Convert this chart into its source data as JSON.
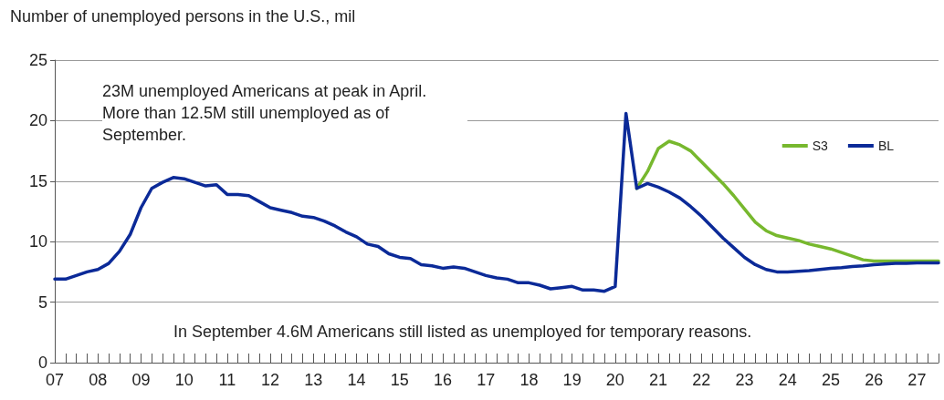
{
  "chart_data": {
    "type": "line",
    "title": "Number of unemployed persons in the U.S., mil",
    "annotations": [
      "23M unemployed Americans at peak in April. More than 12.5M still unemployed as of September.",
      "In September 4.6M Americans still listed as unemployed for temporary reasons."
    ],
    "xlim": [
      2007,
      2027.5
    ],
    "xticks": [
      {
        "value": 2007,
        "label": "07"
      },
      {
        "value": 2007.25,
        "label": null
      },
      {
        "value": 2007.5,
        "label": null
      },
      {
        "value": 2007.75,
        "label": null
      },
      {
        "value": 2008,
        "label": "08"
      },
      {
        "value": 2008.25,
        "label": null
      },
      {
        "value": 2008.5,
        "label": null
      },
      {
        "value": 2008.75,
        "label": null
      },
      {
        "value": 2009,
        "label": "09"
      },
      {
        "value": 2009.25,
        "label": null
      },
      {
        "value": 2009.5,
        "label": null
      },
      {
        "value": 2009.75,
        "label": null
      },
      {
        "value": 2010,
        "label": "10"
      },
      {
        "value": 2010.25,
        "label": null
      },
      {
        "value": 2010.5,
        "label": null
      },
      {
        "value": 2010.75,
        "label": null
      },
      {
        "value": 2011,
        "label": "11"
      },
      {
        "value": 2011.25,
        "label": null
      },
      {
        "value": 2011.5,
        "label": null
      },
      {
        "value": 2011.75,
        "label": null
      },
      {
        "value": 2012,
        "label": "12"
      },
      {
        "value": 2012.25,
        "label": null
      },
      {
        "value": 2012.5,
        "label": null
      },
      {
        "value": 2012.75,
        "label": null
      },
      {
        "value": 2013,
        "label": "13"
      },
      {
        "value": 2013.25,
        "label": null
      },
      {
        "value": 2013.5,
        "label": null
      },
      {
        "value": 2013.75,
        "label": null
      },
      {
        "value": 2014,
        "label": "14"
      },
      {
        "value": 2014.25,
        "label": null
      },
      {
        "value": 2014.5,
        "label": null
      },
      {
        "value": 2014.75,
        "label": null
      },
      {
        "value": 2015,
        "label": "15"
      },
      {
        "value": 2015.25,
        "label": null
      },
      {
        "value": 2015.5,
        "label": null
      },
      {
        "value": 2015.75,
        "label": null
      },
      {
        "value": 2016,
        "label": "16"
      },
      {
        "value": 2016.25,
        "label": null
      },
      {
        "value": 2016.5,
        "label": null
      },
      {
        "value": 2016.75,
        "label": null
      },
      {
        "value": 2017,
        "label": "17"
      },
      {
        "value": 2017.25,
        "label": null
      },
      {
        "value": 2017.5,
        "label": null
      },
      {
        "value": 2017.75,
        "label": null
      },
      {
        "value": 2018,
        "label": "18"
      },
      {
        "value": 2018.25,
        "label": null
      },
      {
        "value": 2018.5,
        "label": null
      },
      {
        "value": 2018.75,
        "label": null
      },
      {
        "value": 2019,
        "label": "19"
      },
      {
        "value": 2019.25,
        "label": null
      },
      {
        "value": 2019.5,
        "label": null
      },
      {
        "value": 2019.75,
        "label": null
      },
      {
        "value": 2020,
        "label": "20"
      },
      {
        "value": 2020.25,
        "label": null
      },
      {
        "value": 2020.5,
        "label": null
      },
      {
        "value": 2020.75,
        "label": null
      },
      {
        "value": 2021,
        "label": "21"
      },
      {
        "value": 2021.25,
        "label": null
      },
      {
        "value": 2021.5,
        "label": null
      },
      {
        "value": 2021.75,
        "label": null
      },
      {
        "value": 2022,
        "label": "22"
      },
      {
        "value": 2022.25,
        "label": null
      },
      {
        "value": 2022.5,
        "label": null
      },
      {
        "value": 2022.75,
        "label": null
      },
      {
        "value": 2023,
        "label": "23"
      },
      {
        "value": 2023.25,
        "label": null
      },
      {
        "value": 2023.5,
        "label": null
      },
      {
        "value": 2023.75,
        "label": null
      },
      {
        "value": 2024,
        "label": "24"
      },
      {
        "value": 2024.25,
        "label": null
      },
      {
        "value": 2024.5,
        "label": null
      },
      {
        "value": 2024.75,
        "label": null
      },
      {
        "value": 2025,
        "label": "25"
      },
      {
        "value": 2025.25,
        "label": null
      },
      {
        "value": 2025.5,
        "label": null
      },
      {
        "value": 2025.75,
        "label": null
      },
      {
        "value": 2026,
        "label": "26"
      },
      {
        "value": 2026.25,
        "label": null
      },
      {
        "value": 2026.5,
        "label": null
      },
      {
        "value": 2026.75,
        "label": null
      },
      {
        "value": 2027,
        "label": "27"
      },
      {
        "value": 2027.25,
        "label": null
      },
      {
        "value": 2027.5,
        "label": null
      }
    ],
    "ylim": [
      0,
      25
    ],
    "yticks": [
      0,
      5,
      10,
      15,
      20,
      25
    ],
    "grid": "y",
    "legend": "top right",
    "marker": "none",
    "line_style": "solid",
    "series": [
      {
        "name": "S3",
        "color": "#77b82e",
        "x": [
          2020.5,
          2020.75,
          2021,
          2021.25,
          2021.5,
          2021.75,
          2022,
          2022.25,
          2022.5,
          2022.75,
          2023,
          2023.25,
          2023.5,
          2023.75,
          2024,
          2024.25,
          2024.5,
          2024.75,
          2025,
          2025.25,
          2025.5,
          2025.75,
          2026,
          2026.25,
          2026.5,
          2026.75,
          2027,
          2027.25,
          2027.5
        ],
        "values": [
          14.4,
          15.8,
          17.7,
          18.3,
          18.0,
          17.5,
          16.6,
          15.7,
          14.8,
          13.8,
          12.7,
          11.6,
          10.9,
          10.5,
          10.3,
          10.1,
          9.8,
          9.6,
          9.4,
          9.1,
          8.8,
          8.5,
          8.4,
          8.4,
          8.4,
          8.4,
          8.4,
          8.4,
          8.4
        ]
      },
      {
        "name": "BL",
        "color": "#0b2a98",
        "x": [
          2007,
          2007.25,
          2007.5,
          2007.75,
          2008,
          2008.25,
          2008.5,
          2008.75,
          2009,
          2009.25,
          2009.5,
          2009.75,
          2010,
          2010.25,
          2010.5,
          2010.75,
          2011,
          2011.25,
          2011.5,
          2011.75,
          2012,
          2012.25,
          2012.5,
          2012.75,
          2013,
          2013.25,
          2013.5,
          2013.75,
          2014,
          2014.25,
          2014.5,
          2014.75,
          2015,
          2015.25,
          2015.5,
          2015.75,
          2016,
          2016.25,
          2016.5,
          2016.75,
          2017,
          2017.25,
          2017.5,
          2017.75,
          2018,
          2018.25,
          2018.5,
          2018.75,
          2019,
          2019.25,
          2019.5,
          2019.75,
          2020,
          2020.25,
          2020.5,
          2020.75,
          2021,
          2021.25,
          2021.5,
          2021.75,
          2022,
          2022.25,
          2022.5,
          2022.75,
          2023,
          2023.25,
          2023.5,
          2023.75,
          2024,
          2024.25,
          2024.5,
          2024.75,
          2025,
          2025.25,
          2025.5,
          2025.75,
          2026,
          2026.25,
          2026.5,
          2026.75,
          2027,
          2027.25,
          2027.5
        ],
        "values": [
          6.9,
          6.9,
          7.2,
          7.5,
          7.7,
          8.2,
          9.2,
          10.6,
          12.8,
          14.4,
          14.9,
          15.3,
          15.2,
          14.9,
          14.6,
          14.7,
          13.9,
          13.9,
          13.8,
          13.3,
          12.8,
          12.6,
          12.4,
          12.1,
          12.0,
          11.7,
          11.3,
          10.8,
          10.4,
          9.8,
          9.6,
          9.0,
          8.7,
          8.6,
          8.1,
          8.0,
          7.8,
          7.9,
          7.8,
          7.5,
          7.2,
          7.0,
          6.9,
          6.6,
          6.6,
          6.4,
          6.1,
          6.2,
          6.3,
          6.0,
          6.0,
          5.9,
          6.3,
          20.6,
          14.4,
          14.8,
          14.5,
          14.1,
          13.6,
          12.9,
          12.1,
          11.2,
          10.3,
          9.5,
          8.7,
          8.1,
          7.7,
          7.5,
          7.5,
          7.55,
          7.6,
          7.7,
          7.8,
          7.85,
          7.95,
          8.0,
          8.1,
          8.15,
          8.2,
          8.2,
          8.25,
          8.25,
          8.25
        ]
      }
    ]
  }
}
